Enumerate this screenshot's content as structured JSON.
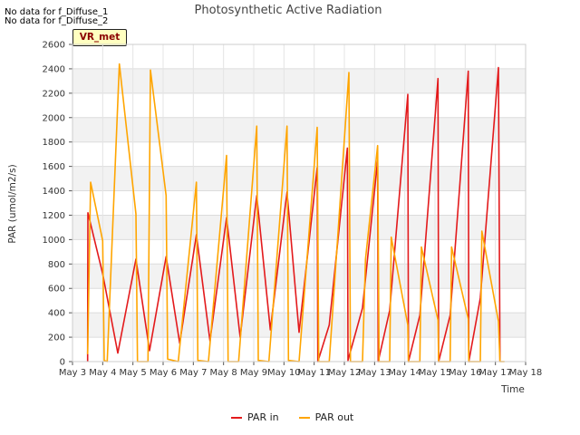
{
  "notices": [
    "No data for f_Diffuse_1",
    "No data for f_Diffuse_2"
  ],
  "badge": "VR_met",
  "chart_data": {
    "type": "line",
    "title": "Photosynthetic Active Radiation",
    "xlabel": "Time",
    "ylabel": "PAR (umol/m2/s)",
    "xlim": [
      3,
      18
    ],
    "ylim": [
      0,
      2600
    ],
    "yticks": [
      0,
      200,
      400,
      600,
      800,
      1000,
      1200,
      1400,
      1600,
      1800,
      2000,
      2200,
      2400,
      2600
    ],
    "xticks": [
      3,
      4,
      5,
      6,
      7,
      8,
      9,
      10,
      11,
      12,
      13,
      14,
      15,
      16,
      17,
      18
    ],
    "xtick_labels": [
      "May 3",
      "May 4",
      "May 5",
      "May 6",
      "May 7",
      "May 8",
      "May 9",
      "May 10",
      "May 11",
      "May 12",
      "May 13",
      "May 14",
      "May 15",
      "May 16",
      "May 17",
      "May 18"
    ],
    "grid": true,
    "legend_position": "bottom-center",
    "series": [
      {
        "name": "PAR in",
        "color": "#e31a1c",
        "points": [
          [
            3.5,
            0
          ],
          [
            3.51,
            1220
          ],
          [
            4.0,
            720
          ],
          [
            4.5,
            70
          ],
          [
            5.1,
            840
          ],
          [
            5.55,
            90
          ],
          [
            6.1,
            860
          ],
          [
            6.55,
            150
          ],
          [
            7.1,
            1040
          ],
          [
            7.55,
            170
          ],
          [
            8.1,
            1180
          ],
          [
            8.55,
            200
          ],
          [
            9.1,
            1360
          ],
          [
            9.55,
            260
          ],
          [
            10.1,
            1390
          ],
          [
            10.5,
            240
          ],
          [
            11.1,
            1590
          ],
          [
            11.12,
            0
          ],
          [
            11.5,
            300
          ],
          [
            12.1,
            1750
          ],
          [
            12.12,
            10
          ],
          [
            12.6,
            440
          ],
          [
            13.1,
            1650
          ],
          [
            13.12,
            0
          ],
          [
            13.5,
            420
          ],
          [
            14.1,
            2190
          ],
          [
            14.12,
            0
          ],
          [
            14.5,
            380
          ],
          [
            15.1,
            2320
          ],
          [
            15.12,
            0
          ],
          [
            15.5,
            380
          ],
          [
            16.1,
            2380
          ],
          [
            16.12,
            0
          ],
          [
            16.5,
            520
          ],
          [
            17.1,
            2410
          ],
          [
            17.15,
            0
          ]
        ]
      },
      {
        "name": "PAR out",
        "color": "#ffa500",
        "points": [
          [
            3.5,
            60
          ],
          [
            3.6,
            1470
          ],
          [
            4.0,
            990
          ],
          [
            4.05,
            10
          ],
          [
            4.15,
            0
          ],
          [
            4.55,
            2440
          ],
          [
            5.1,
            1210
          ],
          [
            5.15,
            0
          ],
          [
            5.5,
            0
          ],
          [
            5.58,
            2390
          ],
          [
            6.1,
            1360
          ],
          [
            6.15,
            20
          ],
          [
            6.5,
            0
          ],
          [
            7.1,
            1470
          ],
          [
            7.15,
            10
          ],
          [
            7.5,
            0
          ],
          [
            8.1,
            1690
          ],
          [
            8.15,
            0
          ],
          [
            8.5,
            0
          ],
          [
            9.1,
            1930
          ],
          [
            9.15,
            10
          ],
          [
            9.5,
            0
          ],
          [
            10.1,
            1930
          ],
          [
            10.15,
            10
          ],
          [
            10.5,
            0
          ],
          [
            11.1,
            1920
          ],
          [
            11.15,
            0
          ],
          [
            11.5,
            0
          ],
          [
            12.15,
            2370
          ],
          [
            12.2,
            0
          ],
          [
            12.6,
            0
          ],
          [
            12.7,
            840
          ],
          [
            13.1,
            1770
          ],
          [
            13.15,
            0
          ],
          [
            13.5,
            0
          ],
          [
            13.55,
            1020
          ],
          [
            14.1,
            300
          ],
          [
            14.12,
            0
          ],
          [
            14.5,
            0
          ],
          [
            14.55,
            940
          ],
          [
            15.1,
            340
          ],
          [
            15.12,
            0
          ],
          [
            15.5,
            0
          ],
          [
            15.55,
            940
          ],
          [
            16.1,
            350
          ],
          [
            16.12,
            0
          ],
          [
            16.5,
            0
          ],
          [
            16.55,
            1070
          ],
          [
            17.1,
            330
          ],
          [
            17.15,
            0
          ],
          [
            17.3,
            0
          ]
        ]
      }
    ]
  }
}
